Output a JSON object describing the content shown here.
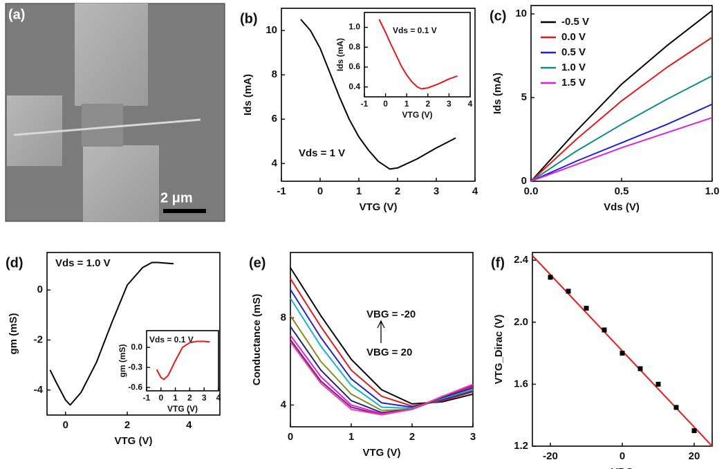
{
  "image_panel": {
    "label": "(a)",
    "scale_bar": "2 μm"
  },
  "chart_data": [
    {
      "type": "line",
      "panel": "(b)",
      "xlabel": "VTG (V)",
      "ylabel": "Ids (mA)",
      "annotations": [
        "Vds = 1 V"
      ],
      "x": [
        -0.5,
        -0.25,
        0,
        0.25,
        0.5,
        0.75,
        1,
        1.25,
        1.5,
        1.8,
        2,
        2.5,
        3,
        3.5
      ],
      "values": [
        10.5,
        10.0,
        9.2,
        8.1,
        7.0,
        6.0,
        5.2,
        4.6,
        4.1,
        3.75,
        3.8,
        4.2,
        4.7,
        5.15
      ],
      "color": "#000000",
      "xlim": [
        -1,
        4
      ],
      "xticks": [
        -1,
        0,
        1,
        2,
        3,
        4
      ],
      "ylim": [
        3.2,
        11
      ],
      "yticks": [
        4,
        6,
        8,
        10
      ]
    },
    {
      "type": "line",
      "xlabel": "VTG (V)",
      "ylabel": "Ids (mA)",
      "annotations": [
        "Vds = 0.1 V"
      ],
      "x": [
        -0.3,
        0,
        0.25,
        0.5,
        0.75,
        1,
        1.25,
        1.5,
        1.7,
        2,
        2.5,
        3,
        3.4
      ],
      "values": [
        1.08,
        0.95,
        0.83,
        0.72,
        0.61,
        0.52,
        0.45,
        0.4,
        0.38,
        0.39,
        0.43,
        0.48,
        0.51
      ],
      "color": "#e8161b",
      "xlim": [
        -1,
        4
      ],
      "xticks": [
        -1,
        0,
        1,
        2,
        3,
        4
      ],
      "ylim": [
        0.3,
        1.15
      ],
      "yticks": [
        0.4,
        0.6,
        0.8,
        {
          "value": 1,
          "label": "1.0"
        }
      ]
    },
    {
      "type": "line",
      "panel": "(c)",
      "xlabel": "Vds (V)",
      "ylabel": "Ids (mA)",
      "legend": "upper left",
      "x": [
        0,
        0.25,
        0.5,
        0.75,
        1
      ],
      "series": [
        {
          "name": "-0.5 V",
          "color": "#000000",
          "values": [
            0,
            3.0,
            5.8,
            8.1,
            10.2
          ]
        },
        {
          "name": "0.0 V",
          "color": "#e8161b",
          "values": [
            0,
            2.5,
            4.8,
            6.8,
            8.6
          ]
        },
        {
          "name": "0.5 V",
          "color": "#1f1fd6",
          "values": [
            0,
            1.2,
            2.3,
            3.4,
            4.6
          ]
        },
        {
          "name": "1.0 V",
          "color": "#118a8a",
          "values": [
            0,
            1.8,
            3.4,
            4.9,
            6.3
          ]
        },
        {
          "name": "1.5 V",
          "color": "#e01ee0",
          "values": [
            0,
            1.0,
            2.0,
            2.9,
            3.8
          ]
        }
      ],
      "xlim": [
        0,
        1
      ],
      "xticks": [
        {
          "value": 0,
          "label": "0.0"
        },
        0.5,
        {
          "value": 1,
          "label": "1.0"
        }
      ],
      "ylim": [
        0,
        10.5
      ],
      "yticks": [
        0,
        5,
        10
      ]
    },
    {
      "type": "line",
      "panel": "(d)",
      "xlabel": "VTG (V)",
      "ylabel": "gm (mS)",
      "annotations": [
        "Vds = 1.0 V"
      ],
      "x": [
        -0.5,
        -0.3,
        0,
        0.15,
        0.5,
        1,
        1.5,
        2,
        2.5,
        2.8,
        3,
        3.5
      ],
      "values": [
        -3.2,
        -3.7,
        -4.4,
        -4.6,
        -4.1,
        -2.9,
        -1.3,
        0.2,
        0.9,
        1.1,
        1.1,
        1.05
      ],
      "color": "#000000",
      "xlim": [
        -0.6,
        5
      ],
      "xticks": [
        0,
        2,
        4
      ],
      "ylim": [
        -5,
        1.5
      ],
      "yticks": [
        -4,
        -2,
        0
      ]
    },
    {
      "type": "line",
      "xlabel": "VTG (V)",
      "ylabel": "gm (mS)",
      "annotations": [
        "Vds = 0.1 V"
      ],
      "x": [
        -0.3,
        0,
        0.2,
        0.5,
        1,
        1.5,
        2,
        2.5,
        3,
        3.4
      ],
      "values": [
        -0.33,
        -0.45,
        -0.48,
        -0.42,
        -0.2,
        0,
        0.07,
        0.09,
        0.09,
        0.08
      ],
      "color": "#e8161b",
      "xlim": [
        -1,
        4
      ],
      "xticks": [
        -1,
        0,
        1,
        2,
        3,
        4
      ],
      "ylim": [
        -0.65,
        0.25
      ],
      "yticks": [
        -0.6,
        -0.3,
        {
          "value": 0,
          "label": "0.0"
        }
      ]
    },
    {
      "type": "line",
      "panel": "(e)",
      "xlabel": "VTG (V)",
      "ylabel": "Conductance (mS)",
      "annotations": [
        "VBG = -20",
        "VBG = 20"
      ],
      "x": [
        0,
        0.5,
        1,
        1.5,
        2,
        2.5,
        3
      ],
      "series": [
        {
          "color": "#000000",
          "values": [
            10.3,
            8.1,
            6.1,
            4.7,
            4.05,
            4.15,
            4.5
          ]
        },
        {
          "color": "#e8161b",
          "values": [
            9.8,
            7.6,
            5.6,
            4.4,
            3.95,
            4.2,
            4.6
          ]
        },
        {
          "color": "#1f1fd6",
          "values": [
            9.3,
            7.1,
            5.2,
            4.1,
            3.9,
            4.25,
            4.65
          ]
        },
        {
          "color": "#11b5c9",
          "values": [
            8.9,
            6.7,
            4.9,
            3.9,
            3.85,
            4.3,
            4.7
          ]
        },
        {
          "color": "#8a8a1a",
          "values": [
            8.1,
            6.0,
            4.5,
            3.75,
            3.8,
            4.35,
            4.75
          ]
        },
        {
          "color": "#1a237e",
          "values": [
            7.6,
            5.6,
            4.2,
            3.65,
            3.8,
            4.35,
            4.8
          ]
        },
        {
          "color": "#e01ee0",
          "values": [
            7.2,
            5.3,
            4.0,
            3.6,
            3.8,
            4.4,
            4.85
          ]
        },
        {
          "color": "#6a1b9a",
          "values": [
            7.0,
            5.1,
            3.9,
            3.55,
            3.8,
            4.4,
            4.9
          ]
        },
        {
          "color": "#ff3d8b",
          "values": [
            6.9,
            5.0,
            3.8,
            3.55,
            3.8,
            4.4,
            4.95
          ]
        }
      ],
      "xlim": [
        0,
        3
      ],
      "xticks": [
        0,
        1,
        2,
        3
      ],
      "ylim": [
        3,
        11
      ],
      "yticks": [
        4,
        8
      ]
    },
    {
      "type": "scatter",
      "panel": "(f)",
      "xlabel": "VBG",
      "ylabel": "VTG_Dirac (V)",
      "x": [
        -20,
        -15,
        -10,
        -5,
        0,
        5,
        10,
        15,
        20
      ],
      "values": [
        2.29,
        2.2,
        2.09,
        1.95,
        1.8,
        1.7,
        1.6,
        1.45,
        1.3
      ],
      "color": "#000000",
      "fit": {
        "x": [
          -25,
          25
        ],
        "values": [
          2.43,
          1.2
        ],
        "color": "#e8161b"
      },
      "xlim": [
        -25,
        25
      ],
      "xticks": [
        -20,
        0,
        20
      ],
      "ylim": [
        1.2,
        2.45
      ],
      "yticks": [
        1.2,
        1.6,
        {
          "value": 2,
          "label": "2.0"
        },
        2.4
      ]
    }
  ]
}
